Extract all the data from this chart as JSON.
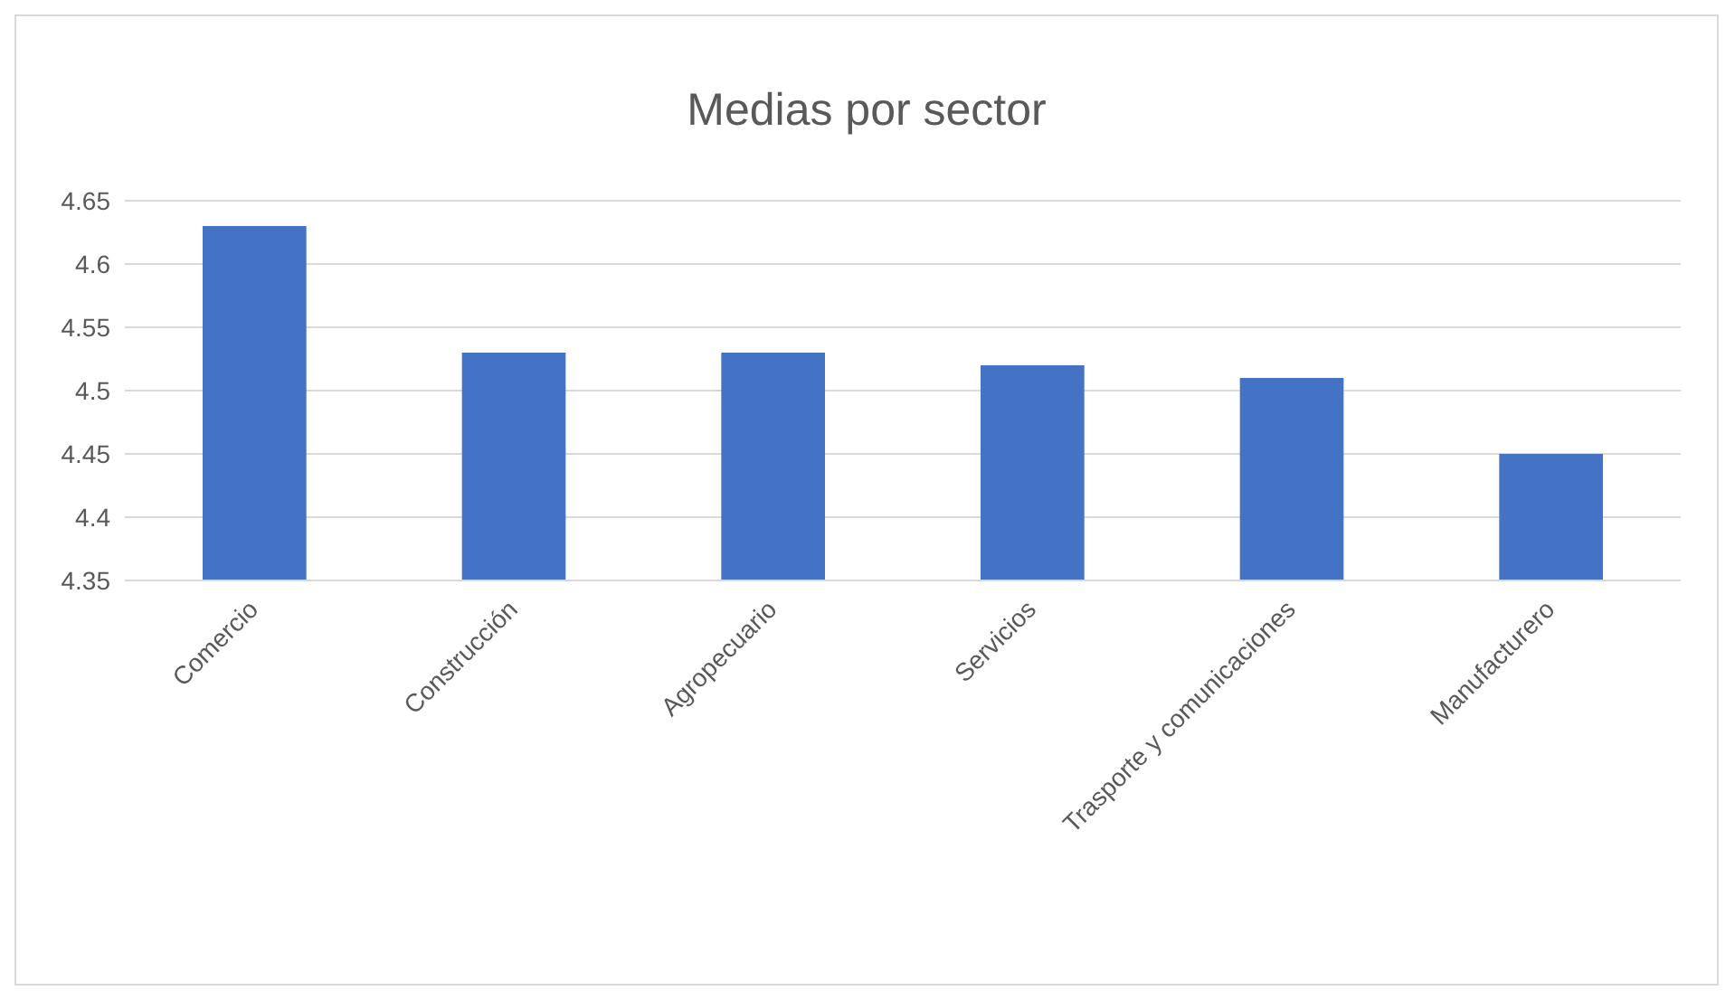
{
  "chart_data": {
    "type": "bar",
    "title": "Medias por sector",
    "categories": [
      "Comercio",
      "Construcción",
      "Agropecuario",
      "Servicios",
      "Trasporte y comunicaciones",
      "Manufacturero"
    ],
    "values": [
      4.63,
      4.53,
      4.53,
      4.52,
      4.51,
      4.45
    ],
    "color": "#4472c4",
    "ylim": [
      4.35,
      4.65
    ],
    "yticks": [
      4.35,
      4.4,
      4.45,
      4.5,
      4.55,
      4.6,
      4.65
    ],
    "grid": "y"
  }
}
